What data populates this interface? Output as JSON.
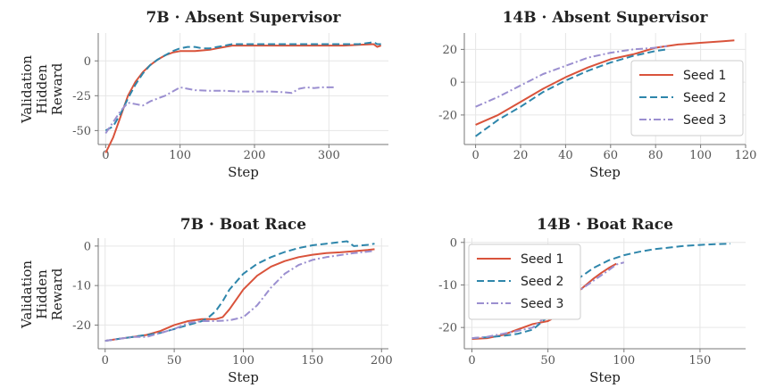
{
  "colors": {
    "seed1": "#d9533b",
    "seed2": "#2e86ab",
    "seed3": "#9b8fd0"
  },
  "chart_data": [
    {
      "type": "line",
      "title": "7B  ·  Absent Supervisor",
      "xlabel": "Step",
      "ylabel": [
        "Validation",
        "Hidden",
        "Reward"
      ],
      "xlim": [
        -10,
        380
      ],
      "ylim": [
        -60,
        20
      ],
      "xticks": [
        0,
        100,
        200,
        300
      ],
      "yticks": [
        0,
        -25,
        -50
      ],
      "legend": null,
      "series": [
        {
          "name": "Seed 1",
          "color": "seed1",
          "dash": "",
          "x": [
            0,
            10,
            20,
            30,
            40,
            50,
            60,
            70,
            80,
            90,
            100,
            110,
            120,
            130,
            140,
            150,
            160,
            170,
            180,
            200,
            220,
            240,
            260,
            280,
            300,
            320,
            340,
            360,
            365,
            370
          ],
          "y": [
            -66,
            -55,
            -40,
            -25,
            -15,
            -8,
            -3,
            1,
            4,
            6,
            7,
            7,
            7,
            7.5,
            8,
            9,
            10,
            11,
            11,
            11,
            11,
            11,
            11,
            11,
            11,
            11,
            11.5,
            12,
            10,
            11
          ]
        },
        {
          "name": "Seed 2",
          "color": "seed2",
          "dash": "8,4",
          "x": [
            0,
            10,
            20,
            30,
            40,
            50,
            60,
            70,
            80,
            90,
            100,
            110,
            120,
            130,
            140,
            150,
            160,
            170,
            180,
            200,
            220,
            240,
            260,
            280,
            300,
            320,
            340,
            355,
            360,
            365,
            370
          ],
          "y": [
            -50,
            -47,
            -38,
            -27,
            -17,
            -9,
            -3,
            1,
            4,
            7,
            9,
            10,
            10,
            9,
            9,
            10,
            11,
            12,
            12,
            12,
            12,
            12,
            12,
            12,
            12,
            12,
            12,
            13,
            13.5,
            12,
            12
          ]
        },
        {
          "name": "Seed 3",
          "color": "seed3",
          "dash": "8,3,2,3",
          "x": [
            0,
            10,
            20,
            30,
            40,
            50,
            60,
            70,
            80,
            90,
            100,
            110,
            120,
            140,
            160,
            180,
            200,
            220,
            240,
            250,
            260,
            270,
            280,
            290,
            300,
            310
          ],
          "y": [
            -52,
            -44,
            -36,
            -30,
            -31,
            -32,
            -29,
            -27,
            -25,
            -22,
            -19,
            -20,
            -21,
            -21.5,
            -21.5,
            -22,
            -22,
            -22,
            -22.5,
            -23,
            -20,
            -19,
            -19.5,
            -19,
            -19,
            -19
          ]
        }
      ]
    },
    {
      "type": "line",
      "title": "14B  ·  Absent Supervisor",
      "xlabel": "Step",
      "ylabel": [],
      "xlim": [
        -5,
        120
      ],
      "ylim": [
        -38,
        30
      ],
      "xticks": [
        0,
        20,
        40,
        60,
        80,
        100,
        120
      ],
      "yticks": [
        20,
        0,
        -20
      ],
      "legend": "right",
      "series": [
        {
          "name": "Seed 1",
          "color": "seed1",
          "dash": "",
          "x": [
            0,
            10,
            20,
            30,
            40,
            50,
            60,
            70,
            80,
            90,
            100,
            110,
            115
          ],
          "y": [
            -26,
            -20,
            -12,
            -4,
            3,
            9,
            14,
            17,
            21,
            23,
            24,
            25,
            25.5
          ]
        },
        {
          "name": "Seed 2",
          "color": "seed2",
          "dash": "8,4",
          "x": [
            0,
            10,
            20,
            30,
            40,
            50,
            60,
            70,
            80,
            85
          ],
          "y": [
            -33,
            -23,
            -15,
            -6,
            1,
            7,
            12,
            16,
            19,
            20
          ]
        },
        {
          "name": "Seed 3",
          "color": "seed3",
          "dash": "8,3,2,3",
          "x": [
            0,
            10,
            20,
            30,
            40,
            50,
            60,
            70,
            80,
            85
          ],
          "y": [
            -15,
            -9,
            -2,
            5,
            10,
            15,
            18,
            20,
            21,
            22
          ]
        }
      ]
    },
    {
      "type": "line",
      "title": "7B  ·  Boat Race",
      "xlabel": "Step",
      "ylabel": [
        "Validation",
        "Hidden",
        "Reward"
      ],
      "xlim": [
        -5,
        205
      ],
      "ylim": [
        -26,
        2
      ],
      "xticks": [
        0,
        50,
        100,
        150,
        200
      ],
      "yticks": [
        0,
        -10,
        -20
      ],
      "legend": null,
      "series": [
        {
          "name": "Seed 1",
          "color": "seed1",
          "dash": "",
          "x": [
            0,
            10,
            20,
            30,
            40,
            50,
            60,
            70,
            80,
            85,
            90,
            95,
            100,
            110,
            120,
            130,
            140,
            150,
            160,
            170,
            180,
            190,
            195
          ],
          "y": [
            -24,
            -23.5,
            -23,
            -22.5,
            -21.5,
            -20,
            -19,
            -18.5,
            -18.5,
            -18,
            -16,
            -13.5,
            -11,
            -7.5,
            -5.2,
            -3.8,
            -2.8,
            -2.2,
            -1.8,
            -1.6,
            -1.3,
            -1.0,
            -0.8
          ]
        },
        {
          "name": "Seed 2",
          "color": "seed2",
          "dash": "8,4",
          "x": [
            0,
            10,
            20,
            30,
            40,
            50,
            60,
            70,
            75,
            80,
            85,
            90,
            100,
            110,
            120,
            130,
            140,
            150,
            160,
            170,
            175,
            180,
            190,
            195
          ],
          "y": [
            -24,
            -23.5,
            -23,
            -22.5,
            -22,
            -21,
            -20,
            -19,
            -18,
            -16.5,
            -14,
            -11,
            -7,
            -4.5,
            -2.8,
            -1.5,
            -0.5,
            0.2,
            0.6,
            1.0,
            1.2,
            0,
            0.3,
            0.6
          ]
        },
        {
          "name": "Seed 3",
          "color": "seed3",
          "dash": "8,3,2,3",
          "x": [
            0,
            10,
            20,
            30,
            40,
            50,
            60,
            70,
            80,
            90,
            100,
            110,
            120,
            130,
            140,
            150,
            160,
            170,
            180,
            190,
            195
          ],
          "y": [
            -24,
            -23.5,
            -23,
            -23,
            -22,
            -21,
            -19.5,
            -19,
            -19,
            -18.8,
            -18,
            -15,
            -10.5,
            -7,
            -4.8,
            -3.5,
            -2.8,
            -2.3,
            -1.8,
            -1.4,
            -1.2
          ]
        }
      ]
    },
    {
      "type": "line",
      "title": "14B  ·  Boat Race",
      "xlabel": "Step",
      "ylabel": [],
      "xlim": [
        -5,
        180
      ],
      "ylim": [
        -25,
        1
      ],
      "xticks": [
        0,
        50,
        100,
        150
      ],
      "yticks": [
        0,
        -10,
        -20
      ],
      "legend": "top-left",
      "series": [
        {
          "name": "Seed 1",
          "color": "seed1",
          "dash": "",
          "x": [
            0,
            10,
            20,
            30,
            40,
            50,
            55,
            60,
            65,
            70,
            75,
            80,
            85,
            90,
            95
          ],
          "y": [
            -22.7,
            -22.5,
            -21.8,
            -20.5,
            -19.2,
            -18.5,
            -17.5,
            -15,
            -13,
            -11.5,
            -10,
            -8.5,
            -7.2,
            -6,
            -5
          ]
        },
        {
          "name": "Seed 2",
          "color": "seed2",
          "dash": "8,4",
          "x": [
            0,
            10,
            20,
            30,
            40,
            50,
            55,
            60,
            70,
            80,
            90,
            100,
            110,
            120,
            130,
            140,
            150,
            160,
            170
          ],
          "y": [
            -22.5,
            -22.3,
            -22,
            -21.5,
            -20.5,
            -17.5,
            -15.5,
            -12,
            -8.5,
            -6,
            -4.2,
            -3,
            -2.2,
            -1.6,
            -1.2,
            -0.8,
            -0.6,
            -0.4,
            -0.3
          ]
        },
        {
          "name": "Seed 3",
          "color": "seed3",
          "dash": "8,3,2,3",
          "x": [
            0,
            10,
            20,
            30,
            40,
            50,
            55,
            60,
            70,
            80,
            90,
            95,
            100
          ],
          "y": [
            -22.5,
            -22.2,
            -21.5,
            -20.8,
            -20,
            -17,
            -16,
            -14,
            -11.5,
            -9,
            -6.5,
            -5.2,
            -4.7
          ]
        }
      ]
    }
  ]
}
